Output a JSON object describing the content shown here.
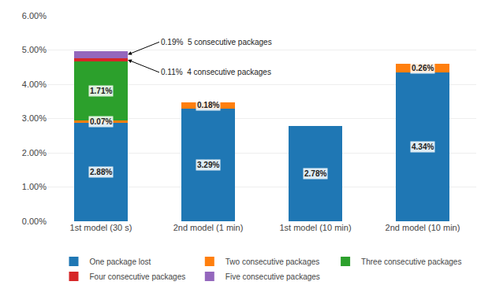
{
  "chart_data": {
    "type": "bar",
    "stacked": true,
    "categories": [
      "1st model (30 s)",
      "2nd model (1 min)",
      "1st model (10 min)",
      "2nd model (10 min)"
    ],
    "series": [
      {
        "name": "One package lost",
        "values": [
          2.88,
          3.29,
          2.78,
          4.34
        ],
        "value_labels": [
          "2.88%",
          "3.29%",
          "2.78%",
          "4.34%"
        ]
      },
      {
        "name": "Two consecutive packages",
        "values": [
          0.07,
          0.18,
          0.0,
          0.26
        ],
        "value_labels": [
          "0.07%",
          "0.18%",
          null,
          "0.26%"
        ]
      },
      {
        "name": "Three consecutive packages",
        "values": [
          1.71,
          0.0,
          0.0,
          0.0
        ],
        "value_labels": [
          "1.71%",
          null,
          null,
          null
        ]
      },
      {
        "name": "Four consecutive packages",
        "values": [
          0.11,
          0.0,
          0.0,
          0.0
        ],
        "value_labels": [
          null,
          null,
          null,
          null
        ]
      },
      {
        "name": "Five consecutive packages",
        "values": [
          0.19,
          0.0,
          0.0,
          0.0
        ],
        "value_labels": [
          null,
          null,
          null,
          null
        ]
      }
    ],
    "ylim": [
      0.0,
      6.0
    ],
    "yticks": [
      {
        "value": 0.0,
        "label": "0.00%"
      },
      {
        "value": 1.0,
        "label": "1.00%"
      },
      {
        "value": 2.0,
        "label": "2.00%"
      },
      {
        "value": 3.0,
        "label": "3.00%"
      },
      {
        "value": 4.0,
        "label": "4.00%"
      },
      {
        "value": 5.0,
        "label": "5.00%"
      },
      {
        "value": 6.0,
        "label": "6.00%"
      }
    ],
    "grid": true,
    "legend": "bottom",
    "data_labels": true,
    "annotations": [
      {
        "text": "0.19%  5 consecutive packages",
        "series": "Five consecutive packages",
        "category": "1st model (30 s)"
      },
      {
        "text": "0.11%  4 consecutive packages",
        "series": "Four consecutive packages",
        "category": "1st model (30 s)"
      }
    ]
  }
}
